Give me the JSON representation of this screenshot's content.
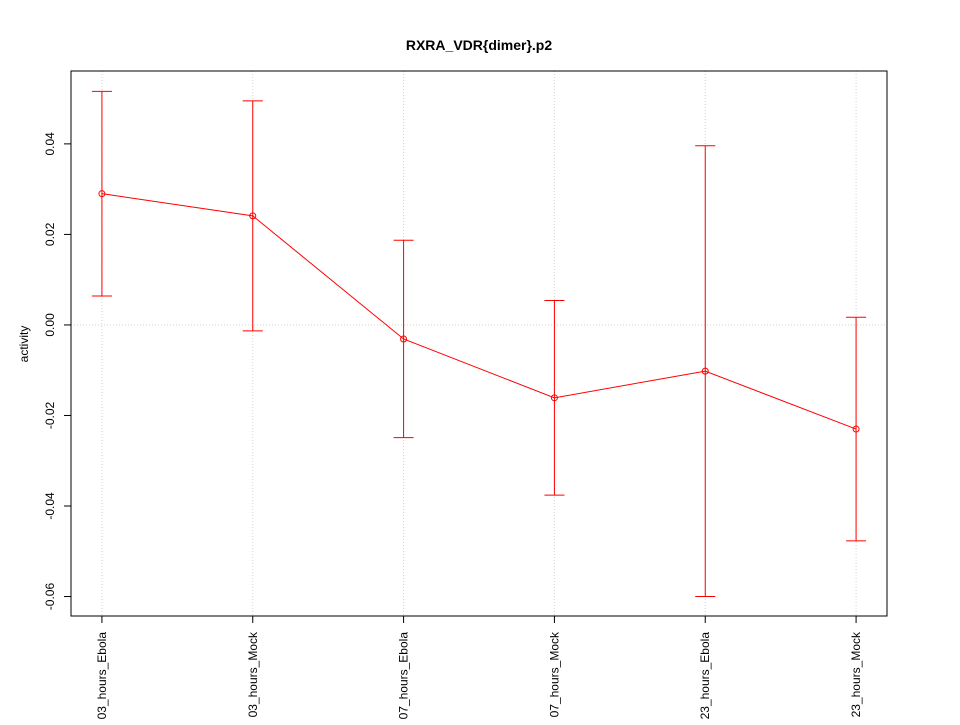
{
  "chart_data": {
    "type": "errorbar-line",
    "title": "RXRA_VDR{dimer}.p2",
    "y_label": "activity",
    "categories": [
      "03_hours_Ebola",
      "03_hours_Mock",
      "07_hours_Ebola",
      "07_hours_Mock",
      "23_hours_Ebola",
      "23_hours_Mock"
    ],
    "values": [
      0.029,
      0.0241,
      -0.0031,
      -0.0161,
      -0.0102,
      -0.023
    ],
    "errors": [
      0.0226,
      0.0254,
      0.0218,
      0.0215,
      0.0498,
      0.0247
    ],
    "color": "#ff0000",
    "ylim": [
      -0.0643,
      0.0561
    ],
    "yticks": [
      -0.06,
      -0.04,
      -0.02,
      {
        "value": 0,
        "label": "0.00"
      },
      0.02,
      0.04
    ],
    "reference_line": 0
  }
}
